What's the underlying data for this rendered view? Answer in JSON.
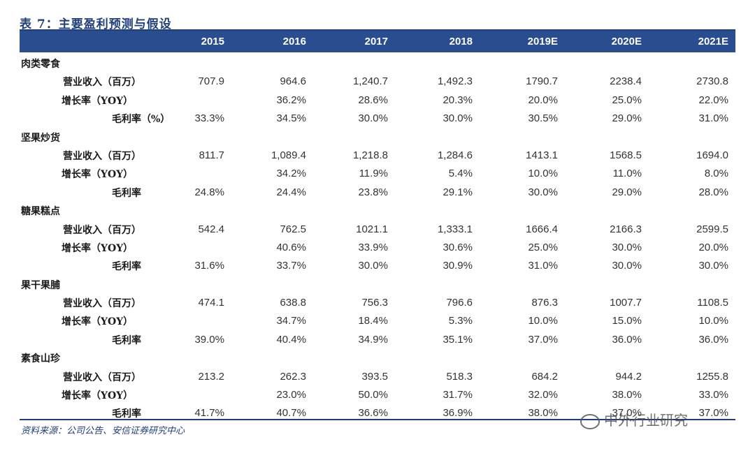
{
  "title": "表 7：主要盈利预测与假设",
  "years": [
    "2015",
    "2016",
    "2017",
    "2018",
    "2019E",
    "2020E",
    "2021E"
  ],
  "categories": [
    {
      "name": "肉类零食",
      "rows": [
        {
          "label": "营业收入（百万）",
          "values": [
            "707.9",
            "964.6",
            "1,240.7",
            "1,492.3",
            "1790.7",
            "2238.4",
            "2730.8"
          ]
        },
        {
          "label": "增长率（YOY）",
          "values": [
            "",
            "36.2%",
            "28.6%",
            "20.3%",
            "20.0%",
            "25.0%",
            "22.0%"
          ]
        },
        {
          "label": "毛利率（%）",
          "values": [
            "33.3%",
            "34.5%",
            "30.0%",
            "30.0%",
            "30.5%",
            "29.0%",
            "31.0%"
          ]
        }
      ]
    },
    {
      "name": "坚果炒货",
      "rows": [
        {
          "label": "营业收入（百万）",
          "values": [
            "811.7",
            "1,089.4",
            "1,218.8",
            "1,284.6",
            "1413.1",
            "1568.5",
            "1694.0"
          ]
        },
        {
          "label": "增长率（YOY）",
          "values": [
            "",
            "34.2%",
            "11.9%",
            "5.4%",
            "10.0%",
            "11.0%",
            "8.0%"
          ]
        },
        {
          "label": "毛利率",
          "values": [
            "24.8%",
            "24.4%",
            "23.8%",
            "29.1%",
            "30.0%",
            "29.0%",
            "28.0%"
          ]
        }
      ]
    },
    {
      "name": "糖果糕点",
      "rows": [
        {
          "label": "营业收入（百万）",
          "values": [
            "542.4",
            "762.5",
            "1021.1",
            "1,333.1",
            "1666.4",
            "2166.3",
            "2599.5"
          ]
        },
        {
          "label": "增长率（YOY）",
          "values": [
            "",
            "40.6%",
            "33.9%",
            "30.6%",
            "25.0%",
            "30.0%",
            "20.0%"
          ]
        },
        {
          "label": "毛利率",
          "values": [
            "31.6%",
            "33.7%",
            "30.0%",
            "30.9%",
            "31.0%",
            "30.0%",
            "30.0%"
          ]
        }
      ]
    },
    {
      "name": "果干果脯",
      "rows": [
        {
          "label": "营业收入（百万）",
          "values": [
            "474.1",
            "638.8",
            "756.3",
            "796.6",
            "876.3",
            "1007.7",
            "1108.5"
          ]
        },
        {
          "label": "增长率（YOY）",
          "values": [
            "",
            "34.7%",
            "18.4%",
            "5.3%",
            "10.0%",
            "15.0%",
            "10.0%"
          ]
        },
        {
          "label": "毛利率",
          "values": [
            "39.0%",
            "40.4%",
            "34.9%",
            "35.1%",
            "37.0%",
            "36.0%",
            "36.0%"
          ]
        }
      ]
    },
    {
      "name": "素食山珍",
      "rows": [
        {
          "label": "营业收入（百万）",
          "values": [
            "213.2",
            "262.3",
            "393.5",
            "518.3",
            "684.2",
            "944.2",
            "1255.8"
          ]
        },
        {
          "label": "增长率（YOY）",
          "values": [
            "",
            "23.0%",
            "50.0%",
            "31.7%",
            "32.0%",
            "38.0%",
            "33.0%"
          ]
        },
        {
          "label": "毛利率",
          "values": [
            "41.7%",
            "40.7%",
            "36.6%",
            "36.9%",
            "38.0%",
            "37.0%",
            "37.0%"
          ]
        }
      ]
    }
  ],
  "source": "资料来源：公司公告、安信证券研究中心",
  "watermark": "中外行业研究"
}
